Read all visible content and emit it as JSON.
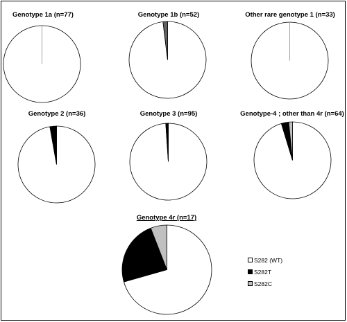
{
  "colors": {
    "S282 (WT)": "#ffffff",
    "S282T": "#000000",
    "S282C": "#c0c0c0",
    "S282C-1b": "#606060",
    "outline": "#000000"
  },
  "legend": [
    {
      "label": "S282 (WT)",
      "color": "#ffffff"
    },
    {
      "label": "S282T",
      "color": "#000000"
    },
    {
      "label": "S282C",
      "color": "#c0c0c0"
    }
  ],
  "chart_data": [
    {
      "type": "pie",
      "title": "Genotype 1a (n=77)",
      "slices": [
        {
          "label": "S282 (WT)",
          "value": 77
        },
        {
          "label": "S282T",
          "value": 0
        },
        {
          "label": "S282C",
          "value": 0
        }
      ]
    },
    {
      "type": "pie",
      "title": "Genotype 1b (n=52)",
      "slices": [
        {
          "label": "S282 (WT)",
          "value": 51
        },
        {
          "label": "S282T",
          "value": 0
        },
        {
          "label": "S282C",
          "value": 1
        }
      ]
    },
    {
      "type": "pie",
      "title": "Other rare genotype 1 (n=33)",
      "slices": [
        {
          "label": "S282 (WT)",
          "value": 33
        },
        {
          "label": "S282T",
          "value": 0
        },
        {
          "label": "S282C",
          "value": 0
        }
      ]
    },
    {
      "type": "pie",
      "title": "Genotype 2 (n=36)",
      "slices": [
        {
          "label": "S282 (WT)",
          "value": 35
        },
        {
          "label": "S282T",
          "value": 1
        },
        {
          "label": "S282C",
          "value": 0
        }
      ]
    },
    {
      "type": "pie",
      "title": "Genotype 3 (n=95)",
      "slices": [
        {
          "label": "S282 (WT)",
          "value": 94
        },
        {
          "label": "S282T",
          "value": 1
        },
        {
          "label": "S282C",
          "value": 0
        }
      ]
    },
    {
      "type": "pie",
      "title": "Genotype-4 ; other than 4r (n=64)",
      "slices": [
        {
          "label": "S282 (WT)",
          "value": 61
        },
        {
          "label": "S282T",
          "value": 2
        },
        {
          "label": "S282C",
          "value": 1
        }
      ]
    },
    {
      "type": "pie",
      "title": "Genotype 4r (n=17)",
      "title_underlined": true,
      "slices": [
        {
          "label": "S282 (WT)",
          "value": 12
        },
        {
          "label": "S282T",
          "value": 4
        },
        {
          "label": "S282C",
          "value": 1
        }
      ]
    }
  ]
}
